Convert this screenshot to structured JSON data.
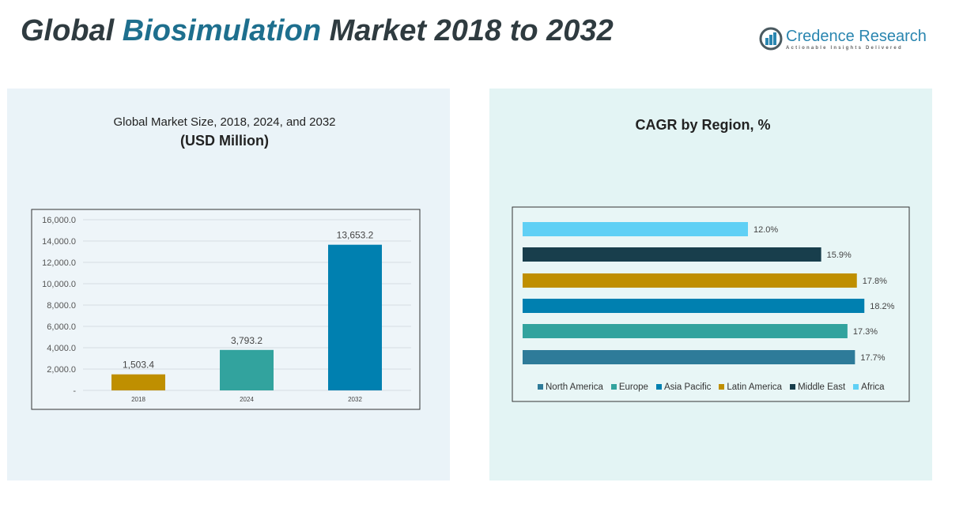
{
  "header": {
    "title_pre": "Global ",
    "title_hl": "Biosimulation",
    "title_post": " Market 2018 to 2032"
  },
  "logo": {
    "name": "Credence Research",
    "tagline": "Actionable Insights Delivered"
  },
  "chart_data": [
    {
      "type": "bar",
      "title": "Global Market Size, 2018, 2024, and 2032",
      "subtitle": "(USD Million)",
      "categories": [
        "2018",
        "2024",
        "2032"
      ],
      "values": [
        1503.4,
        3793.2,
        13653.2
      ],
      "value_labels": [
        "1,503.4",
        "3,793.2",
        "13,653.2"
      ],
      "colors": [
        "#bf8f00",
        "#32a39e",
        "#0080b0"
      ],
      "ylim": [
        0,
        16000
      ],
      "yticks": [
        "-",
        "2,000.0",
        "4,000.0",
        "6,000.0",
        "8,000.0",
        "10,000.0",
        "12,000.0",
        "14,000.0",
        "16,000.0"
      ],
      "grid": true
    },
    {
      "type": "bar",
      "orientation": "horizontal",
      "title": "CAGR by Region, %",
      "categories": [
        "North America",
        "Europe",
        "Asia Pacific",
        "Latin America",
        "Middle East",
        "Africa"
      ],
      "values": [
        17.7,
        17.3,
        18.2,
        17.8,
        15.9,
        12.0
      ],
      "value_labels": [
        "17.7%",
        "17.3%",
        "18.2%",
        "17.8%",
        "15.9%",
        "12.0%"
      ],
      "colors": [
        "#2e7b99",
        "#32a39e",
        "#0080b0",
        "#bf8f00",
        "#183e4c",
        "#5fd0f5"
      ],
      "legend": "bottom"
    }
  ]
}
